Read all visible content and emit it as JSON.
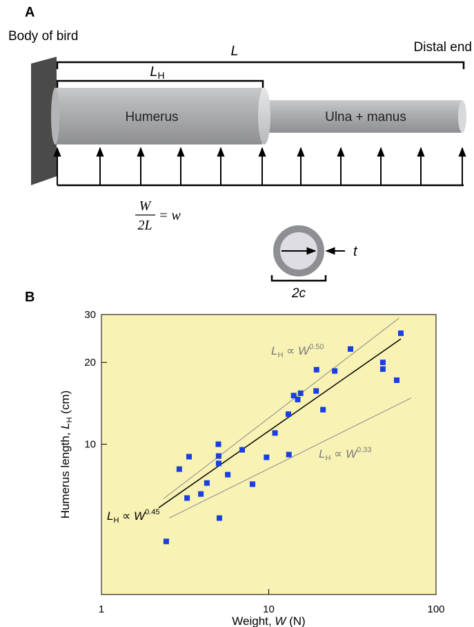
{
  "panel_labels": [
    "A",
    "B"
  ],
  "diagram": {
    "wall_label": "Body of bird",
    "total_length": "L",
    "distal_label": "Distal end",
    "humerus_length": {
      "var": "L",
      "sub": "H"
    },
    "humerus": "Humerus",
    "ulna": "Ulna + manus",
    "load": {
      "numerator": "W",
      "denominator": "2L",
      "rhs": "= w"
    },
    "thickness": "t",
    "diameter": "2c"
  },
  "chart_data": {
    "type": "scatter",
    "log_x": true,
    "log_y": true,
    "color": "#1a3fe0",
    "background": "#f8f2b4",
    "xlabel": {
      "text": "Weight, ",
      "var": "W",
      "unit": " (N)"
    },
    "ylabel": {
      "text": "Humerus length, ",
      "var": "L",
      "sub": "H",
      "unit": " (cm)"
    },
    "xlim": [
      1,
      100
    ],
    "xticks": [
      1,
      10,
      100
    ],
    "ylim": [
      2.8,
      30
    ],
    "yticks": [
      10,
      20,
      30
    ],
    "x": [
      2.44,
      2.92,
      3.34,
      3.25,
      3.93,
      4.27,
      5.02,
      5.02,
      5.0,
      5.07,
      5.69,
      6.94,
      8.0,
      9.7,
      10.9,
      13.1,
      13.2,
      14.1,
      14.9,
      15.5,
      19.3,
      19.2,
      21.1,
      24.8,
      30.8,
      48.1,
      48.1,
      58.2,
      61.6
    ],
    "values": [
      4.39,
      8.1,
      9.0,
      6.34,
      6.56,
      7.2,
      8.5,
      9.05,
      10.0,
      5.35,
      7.73,
      9.54,
      7.13,
      8.95,
      11.0,
      12.9,
      9.16,
      15.1,
      14.6,
      15.4,
      18.8,
      15.7,
      13.4,
      18.6,
      22.4,
      20.0,
      18.9,
      17.2,
      25.6
    ],
    "lines": [
      {
        "color": "#000000",
        "x": [
          2.2,
          61.6
        ],
        "values": [
          5.84,
          24.4
        ]
      },
      {
        "color": "#8a8a8a",
        "x": [
          2.35,
          60.1
        ],
        "values": [
          6.3,
          29.1
        ]
      },
      {
        "color": "#8a8a8a",
        "x": [
          2.54,
          71
        ],
        "values": [
          5.35,
          14.8
        ]
      }
    ],
    "annotations": [
      {
        "var": "L",
        "sub": "H",
        "mid": " ∝ ",
        "var2": "W",
        "sup": "0.50",
        "color": "#7a7a7a"
      },
      {
        "var": "L",
        "sub": "H",
        "mid": " ∝ ",
        "var2": "W",
        "sup": "0.33",
        "color": "#7a7a7a"
      },
      {
        "var": "L",
        "sub": "H",
        "mid": " ∝ ",
        "var2": "W",
        "sup": "0.45",
        "color": "#000000"
      }
    ]
  }
}
